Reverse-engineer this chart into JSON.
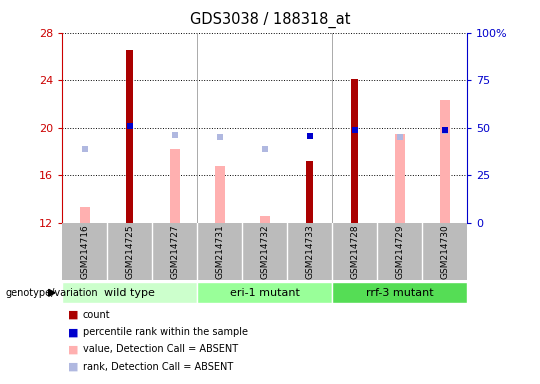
{
  "title": "GDS3038 / 188318_at",
  "samples": [
    "GSM214716",
    "GSM214725",
    "GSM214727",
    "GSM214731",
    "GSM214732",
    "GSM214733",
    "GSM214728",
    "GSM214729",
    "GSM214730"
  ],
  "count_bars": {
    "values": [
      null,
      26.5,
      null,
      null,
      null,
      17.2,
      24.1,
      null,
      null
    ],
    "color": "#aa0000"
  },
  "value_absent_bars": {
    "values": [
      13.3,
      null,
      18.2,
      16.8,
      12.6,
      null,
      null,
      19.5,
      22.3
    ],
    "color": "#ffb0b0"
  },
  "rank_absent_markers": {
    "values": [
      18.2,
      null,
      19.4,
      19.2,
      18.2,
      null,
      null,
      19.2,
      19.7
    ],
    "color": "#b0b8e0"
  },
  "percentile_markers": {
    "values": [
      null,
      20.1,
      null,
      null,
      null,
      19.3,
      19.8,
      null,
      19.8
    ],
    "color": "#0000cc"
  },
  "ylim": [
    12,
    28
  ],
  "yticks_left": [
    12,
    16,
    20,
    24,
    28
  ],
  "left_axis_color": "#cc0000",
  "right_axis_color": "#0000cc",
  "group_labels": [
    "wild type",
    "eri-1 mutant",
    "rrf-3 mutant"
  ],
  "group_ranges": [
    [
      0,
      3
    ],
    [
      3,
      6
    ],
    [
      6,
      9
    ]
  ],
  "group_colors": [
    "#ccffcc",
    "#99ff99",
    "#55dd55"
  ],
  "xlabels_bg": "#bbbbbb",
  "legend_items": [
    {
      "color": "#aa0000",
      "label": "count"
    },
    {
      "color": "#0000cc",
      "label": "percentile rank within the sample"
    },
    {
      "color": "#ffb0b0",
      "label": "value, Detection Call = ABSENT"
    },
    {
      "color": "#b0b8e0",
      "label": "rank, Detection Call = ABSENT"
    }
  ]
}
